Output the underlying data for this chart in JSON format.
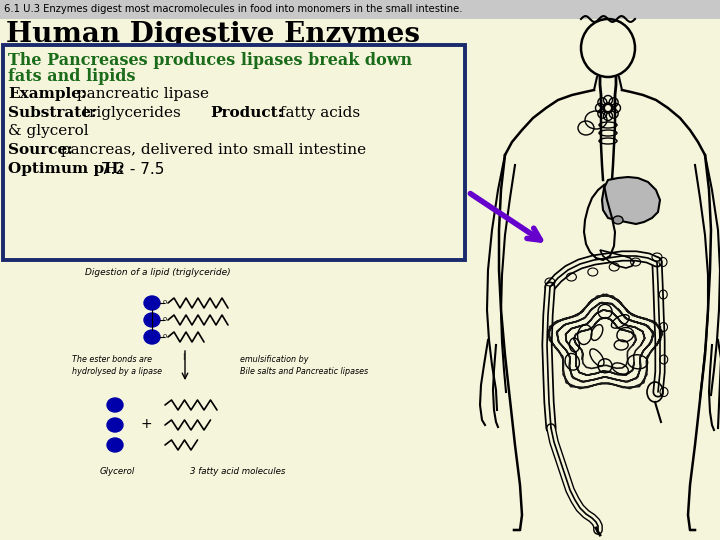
{
  "header_text": "6.1 U.3 Enzymes digest most macromolecules in food into monomers in the small intestine.",
  "title": "Human Digestive Enzymes",
  "header_bg": "#c8c8c8",
  "main_bg": "#f5f5dc",
  "green_text_line1": "The Pancreases produces lipases break down",
  "green_text_line2": "fats and lipids",
  "line1_bold": "Example:",
  "line1_rest": " pancreatic lipase",
  "line2_b1": "Substrate:",
  "line2_r1": " triglycerides    ",
  "line2_b2": "Product:",
  "line2_r2": " fatty acids",
  "line2_r3": "& glycerol",
  "line3_b": "Source:",
  "line3_r": " pancreas, delivered into small intestine",
  "line4_b": "Optimum pH:",
  "line4_r": " 7.2 - 7.5",
  "box_edge_color": "#1a2a6c",
  "arrow_color": "#6600cc",
  "text_color": "#000000",
  "green_color": "#1a6b1a",
  "blue_circle": "#0000aa",
  "diag_label": "Digestion of a lipid (triglyceride)",
  "diag_ester": "The ester bonds are\nhydrolysed by a lipase",
  "diag_emul": "emulsification by\nBile salts and Pancreatic lipases",
  "diag_glycerol": "Glycerol",
  "diag_fatty": "3 fatty acid molecules"
}
